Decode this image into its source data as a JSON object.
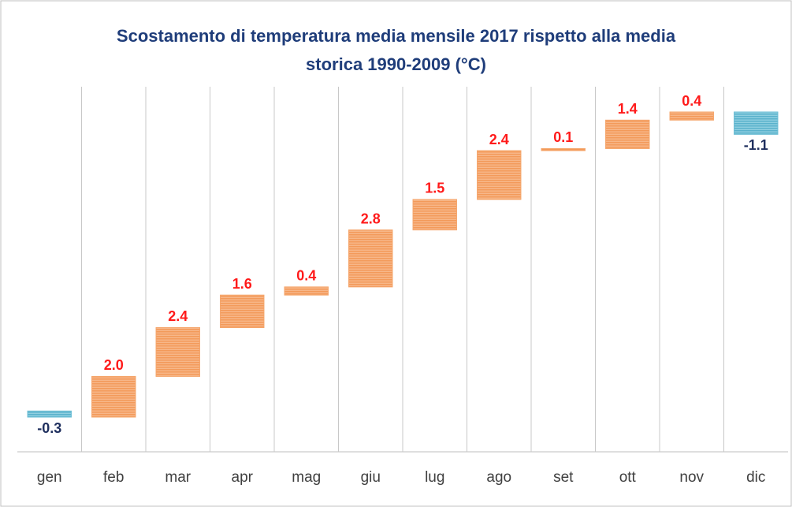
{
  "chart_data": {
    "type": "waterfall",
    "title": "Scostamento di temperatura media mensile 2017 rispetto alla media\nstorica 1990-2009 (°C)",
    "categories": [
      "gen",
      "feb",
      "mar",
      "apr",
      "mag",
      "giu",
      "lug",
      "ago",
      "set",
      "ott",
      "nov",
      "dic"
    ],
    "values": [
      -0.3,
      2.0,
      2.4,
      1.6,
      0.4,
      2.8,
      1.5,
      2.4,
      0.1,
      1.4,
      0.4,
      -1.1
    ],
    "value_labels": [
      "-0.3",
      "2.0",
      "2.4",
      "1.6",
      "0.4",
      "2.8",
      "1.5",
      "2.4",
      "0.1",
      "1.4",
      "0.4",
      "-1.1"
    ],
    "increase_color": "#f5a56a",
    "decrease_color": "#6bbdd4",
    "increase_label_color": "#ff1a1a",
    "decrease_label_color": "#1f2f5e",
    "grid": true
  }
}
